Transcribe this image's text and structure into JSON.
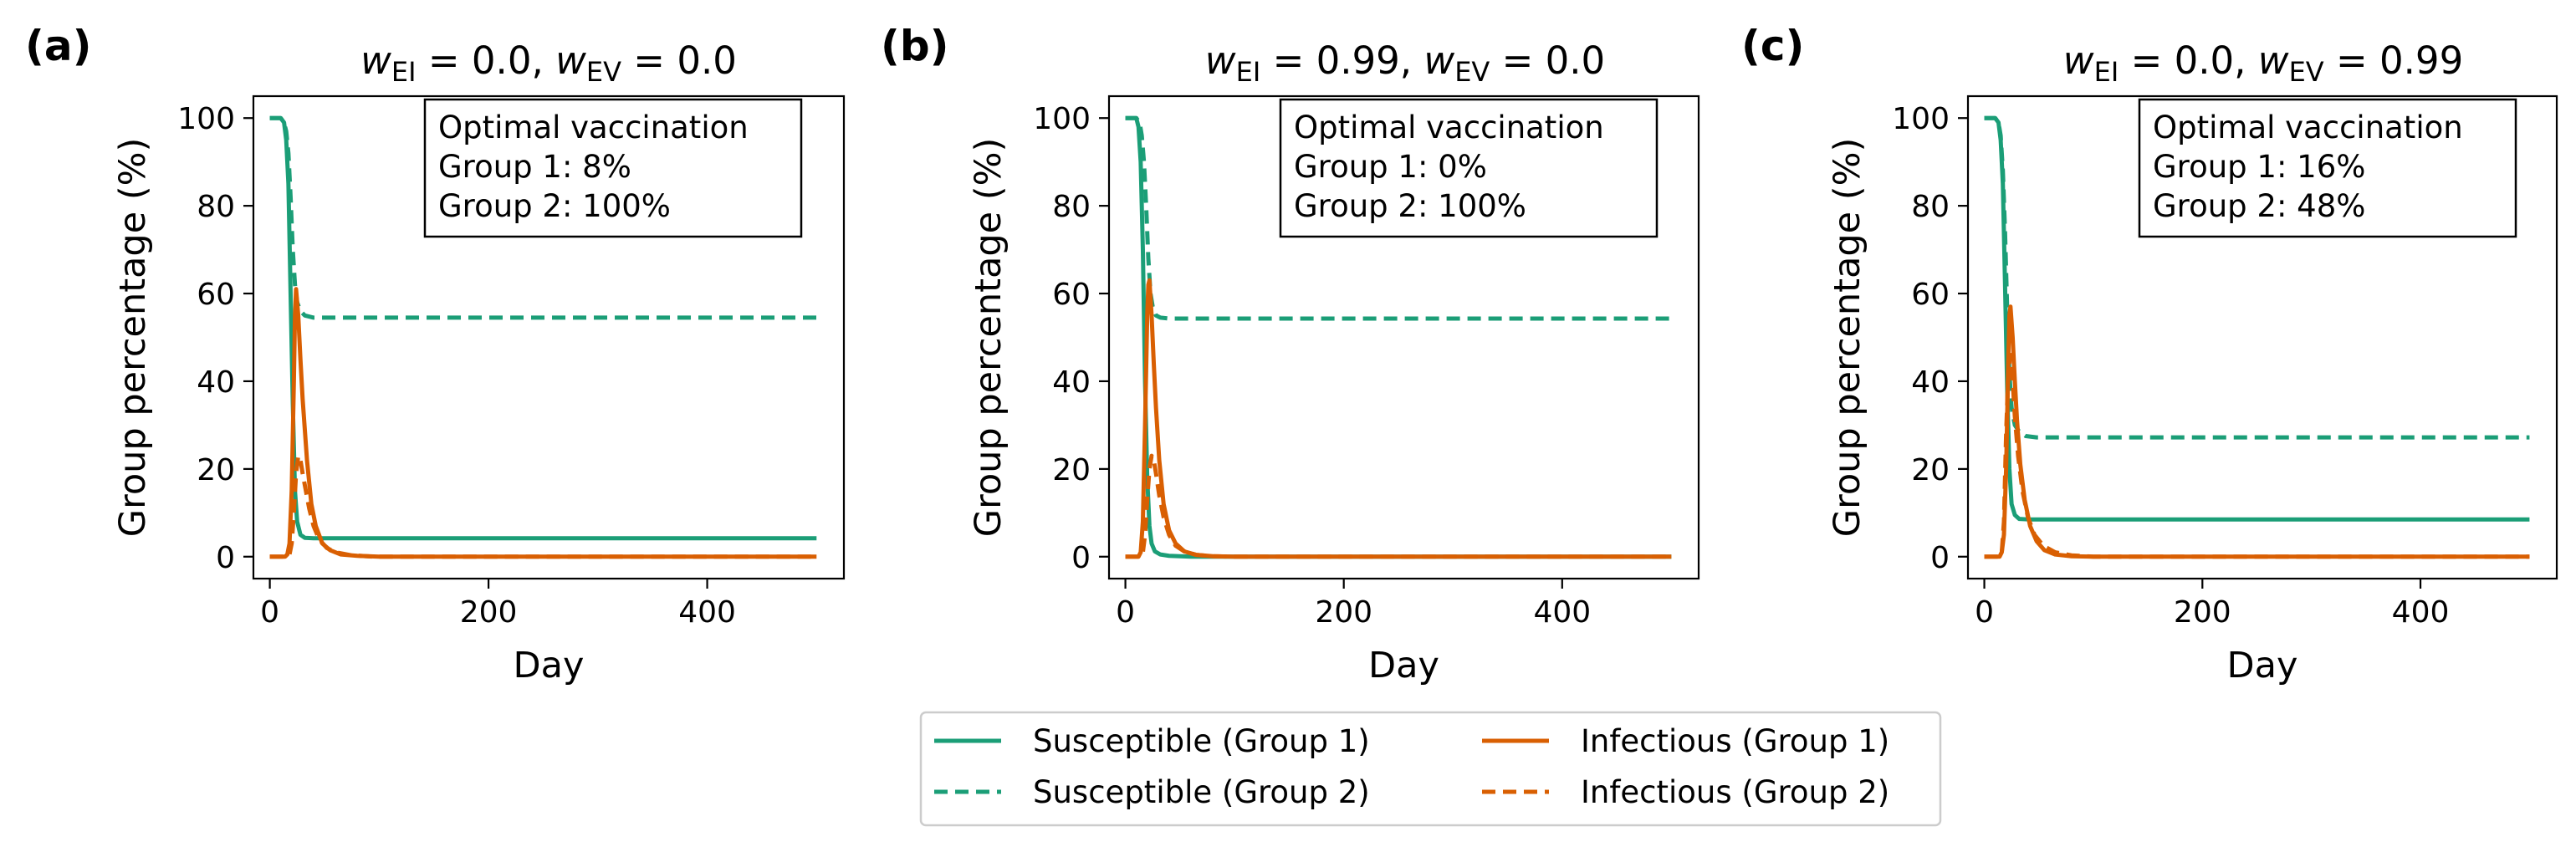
{
  "colors": {
    "susceptible": "#1b9e77",
    "infectious": "#d95f02"
  },
  "legend": {
    "placement": "bottom-center",
    "entries": [
      {
        "label": "Susceptible (Group 1)",
        "series": "s1"
      },
      {
        "label": "Susceptible (Group 2)",
        "series": "s2"
      },
      {
        "label": "Infectious (Group 1)",
        "series": "i1"
      },
      {
        "label": "Infectious (Group 2)",
        "series": "i2"
      }
    ]
  },
  "chart_data": [
    {
      "type": "line",
      "panel_label": "(a)",
      "title": {
        "w_ei": "0.0",
        "w_ev": "0.0"
      },
      "xlabel": "Day",
      "ylabel": "Group percentage (%)",
      "xlim": [
        -15,
        525
      ],
      "ylim": [
        -5,
        105
      ],
      "xticks": [
        0,
        200,
        400
      ],
      "yticks": [
        0,
        20,
        40,
        60,
        80,
        100
      ],
      "annotation": [
        "Optimal vaccination",
        "Group 1: 8%",
        "Group 2: 100%"
      ],
      "series": [
        {
          "id": "s1",
          "x": [
            0,
            10,
            13,
            15,
            17,
            19,
            21,
            23,
            25,
            28,
            32,
            40,
            60,
            500
          ],
          "y": [
            100,
            100,
            99,
            95,
            85,
            60,
            35,
            15,
            8,
            5,
            4.3,
            4.2,
            4.2,
            4.2
          ]
        },
        {
          "id": "s2",
          "x": [
            0,
            10,
            13,
            15,
            17,
            19,
            21,
            23,
            25,
            28,
            32,
            40,
            60,
            500
          ],
          "y": [
            100,
            100,
            99,
            97,
            92,
            82,
            70,
            62,
            58,
            56,
            55,
            54.5,
            54.5,
            54.5
          ]
        },
        {
          "id": "i1",
          "x": [
            0,
            14,
            16,
            18,
            20,
            22,
            23,
            24,
            26,
            28,
            30,
            34,
            38,
            42,
            48,
            55,
            65,
            80,
            100,
            500
          ],
          "y": [
            0,
            0,
            0.5,
            3,
            15,
            40,
            55,
            61,
            55,
            45,
            36,
            22,
            12,
            7,
            3,
            1.5,
            0.5,
            0.2,
            0,
            0
          ]
        },
        {
          "id": "i2",
          "x": [
            0,
            16,
            18,
            20,
            22,
            24,
            26,
            28,
            30,
            33,
            36,
            40,
            45,
            52,
            60,
            75,
            95,
            500
          ],
          "y": [
            0,
            0,
            0.5,
            3,
            10,
            19,
            23,
            22,
            19,
            15,
            11,
            7,
            4,
            2,
            1,
            0.3,
            0,
            0
          ]
        }
      ]
    },
    {
      "type": "line",
      "panel_label": "(b)",
      "title": {
        "w_ei": "0.99",
        "w_ev": "0.0"
      },
      "xlabel": "Day",
      "ylabel": "Group percentage (%)",
      "xlim": [
        -15,
        525
      ],
      "ylim": [
        -5,
        105
      ],
      "xticks": [
        0,
        200,
        400
      ],
      "yticks": [
        0,
        20,
        40,
        60,
        80,
        100
      ],
      "annotation": [
        "Optimal vaccination",
        "Group 1: 0%",
        "Group 2: 100%"
      ],
      "series": [
        {
          "id": "s1",
          "x": [
            0,
            10,
            12,
            14,
            16,
            18,
            20,
            22,
            24,
            27,
            32,
            40,
            60,
            500
          ],
          "y": [
            100,
            100,
            98,
            90,
            70,
            40,
            18,
            7,
            3,
            1.2,
            0.5,
            0.2,
            0,
            0
          ]
        },
        {
          "id": "s2",
          "x": [
            0,
            10,
            13,
            15,
            17,
            19,
            21,
            23,
            25,
            28,
            32,
            40,
            60,
            500
          ],
          "y": [
            100,
            100,
            99,
            96,
            90,
            80,
            68,
            60,
            57,
            55,
            54.5,
            54.3,
            54.3,
            54.3
          ]
        },
        {
          "id": "i1",
          "x": [
            0,
            12,
            14,
            16,
            18,
            20,
            21,
            22,
            24,
            26,
            28,
            31,
            35,
            40,
            46,
            54,
            65,
            80,
            100,
            500
          ],
          "y": [
            0,
            0,
            1,
            8,
            30,
            55,
            62,
            63,
            55,
            44,
            34,
            22,
            12,
            6,
            3,
            1.2,
            0.4,
            0.1,
            0,
            0
          ]
        },
        {
          "id": "i2",
          "x": [
            0,
            14,
            16,
            18,
            20,
            22,
            24,
            26,
            28,
            31,
            35,
            40,
            46,
            54,
            65,
            80,
            100,
            500
          ],
          "y": [
            0,
            0,
            1,
            5,
            13,
            20,
            23,
            22,
            19,
            14,
            9,
            5,
            2.5,
            1.2,
            0.4,
            0.1,
            0,
            0
          ]
        }
      ]
    },
    {
      "type": "line",
      "panel_label": "(c)",
      "title": {
        "w_ei": "0.0",
        "w_ev": "0.99"
      },
      "xlabel": "Day",
      "ylabel": "Group percentage (%)",
      "xlim": [
        -15,
        525
      ],
      "ylim": [
        -5,
        105
      ],
      "xticks": [
        0,
        200,
        400
      ],
      "yticks": [
        0,
        20,
        40,
        60,
        80,
        100
      ],
      "annotation": [
        "Optimal vaccination",
        "Group 1: 16%",
        "Group 2: 48%"
      ],
      "series": [
        {
          "id": "s1",
          "x": [
            0,
            10,
            13,
            15,
            17,
            19,
            21,
            23,
            25,
            28,
            32,
            40,
            60,
            500
          ],
          "y": [
            100,
            100,
            99,
            95,
            85,
            62,
            38,
            20,
            12,
            9.5,
            8.6,
            8.5,
            8.5,
            8.5
          ]
        },
        {
          "id": "s2",
          "x": [
            0,
            10,
            13,
            15,
            17,
            19,
            21,
            23,
            25,
            28,
            32,
            38,
            48,
            60,
            500
          ],
          "y": [
            100,
            100,
            99,
            96,
            88,
            74,
            56,
            42,
            34,
            30,
            28.5,
            27.5,
            27.2,
            27.2,
            27.2
          ]
        },
        {
          "id": "i1",
          "x": [
            0,
            14,
            16,
            18,
            20,
            22,
            23,
            24,
            26,
            28,
            30,
            33,
            37,
            42,
            48,
            55,
            65,
            80,
            100,
            500
          ],
          "y": [
            0,
            0,
            1,
            5,
            20,
            45,
            55,
            57,
            50,
            40,
            31,
            21,
            13,
            7,
            3.5,
            1.5,
            0.5,
            0.1,
            0,
            0
          ]
        },
        {
          "id": "i2",
          "x": [
            0,
            14,
            16,
            18,
            20,
            22,
            24,
            26,
            28,
            31,
            35,
            40,
            46,
            54,
            65,
            80,
            100,
            500
          ],
          "y": [
            0,
            0,
            1,
            8,
            28,
            42,
            46,
            40,
            32,
            23,
            15,
            9,
            5,
            2.5,
            1,
            0.3,
            0,
            0
          ]
        }
      ]
    }
  ]
}
